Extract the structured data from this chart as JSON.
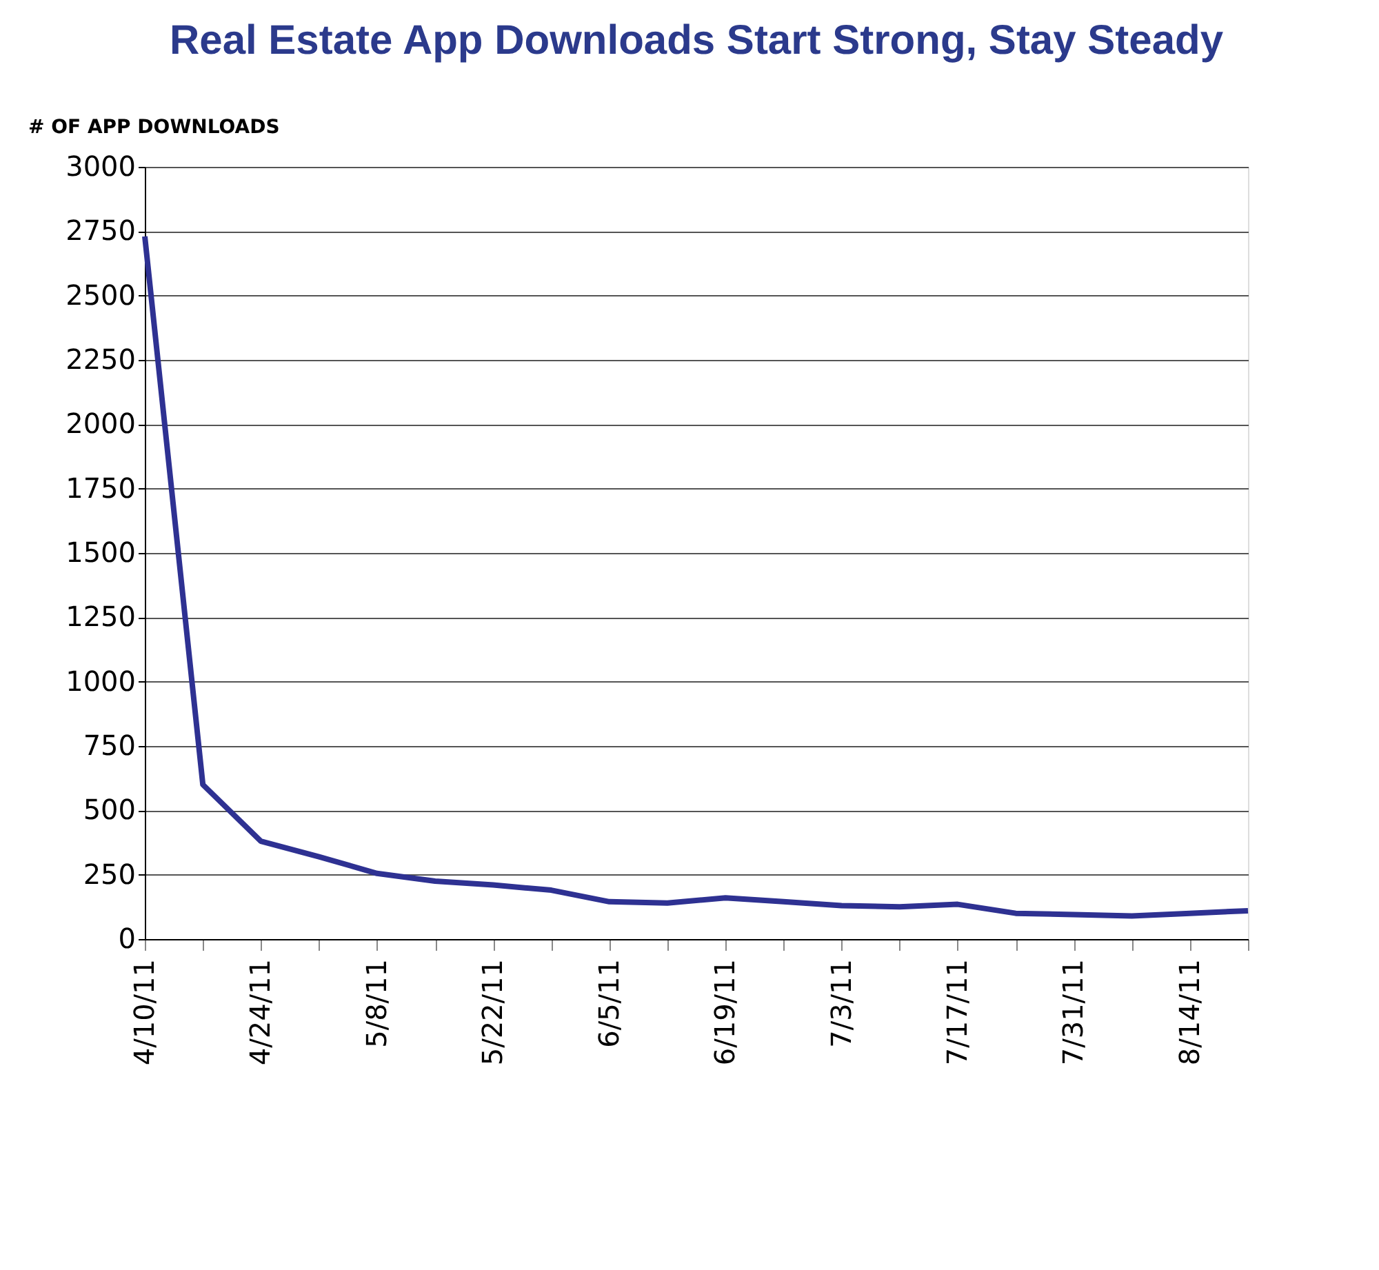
{
  "chart_data": {
    "type": "line",
    "title": "Real Estate App Downloads Start Strong, Stay Steady",
    "ylabel": "# OF APP DOWNLOADS",
    "categories": [
      "4/10/11",
      null,
      "4/24/11",
      null,
      "5/8/11",
      null,
      "5/22/11",
      null,
      "6/5/11",
      null,
      "6/19/11",
      null,
      "7/3/11",
      null,
      "7/17/11",
      null,
      "7/31/11",
      null,
      "8/14/11",
      null
    ],
    "series": [
      {
        "color": "#2e3192",
        "values": [
          2730,
          600,
          380,
          320,
          255,
          225,
          210,
          190,
          145,
          140,
          160,
          145,
          130,
          125,
          135,
          100,
          95,
          90,
          100,
          110
        ]
      }
    ],
    "ylim": [
      0,
      3000
    ],
    "yticks": [
      0,
      250,
      500,
      750,
      1000,
      1250,
      1500,
      1750,
      2000,
      2250,
      2500,
      2750,
      3000
    ],
    "grid": "y",
    "marker": "none",
    "line_style": "solid",
    "legend": false
  }
}
